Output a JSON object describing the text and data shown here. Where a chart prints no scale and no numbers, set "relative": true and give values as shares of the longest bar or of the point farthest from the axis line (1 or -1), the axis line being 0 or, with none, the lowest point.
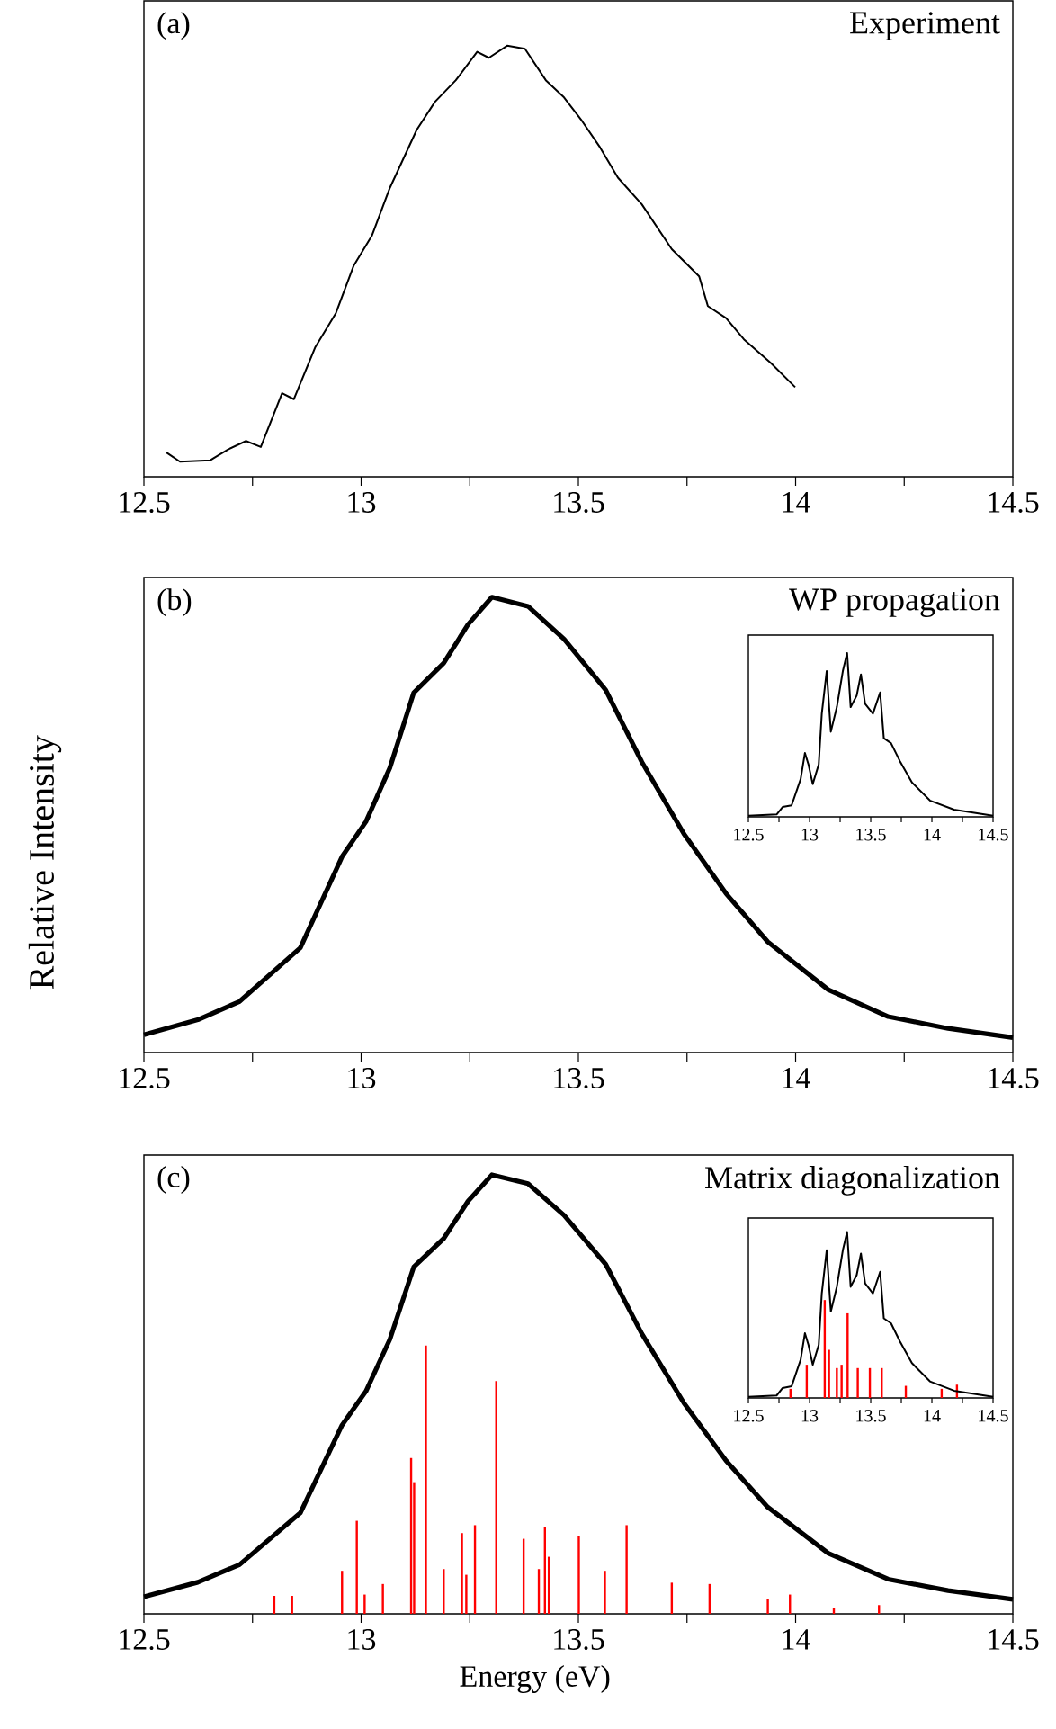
{
  "chart_data": [
    {
      "type": "line",
      "title": "Experiment",
      "annotations": [
        "(a)"
      ],
      "relative": true,
      "xlim": [
        12.5,
        14.5
      ],
      "xticks": [
        12.5,
        {
          "value": 12.75,
          "label": null
        },
        13,
        {
          "value": 13.25,
          "label": null
        },
        13.5,
        {
          "value": 13.75,
          "label": null
        },
        14,
        {
          "value": 14.25,
          "label": null
        },
        14.5
      ],
      "series": [
        {
          "color": "#000000",
          "x": [
            12.552,
            12.583,
            12.652,
            12.693,
            12.735,
            12.769,
            12.818,
            12.845,
            12.894,
            12.942,
            12.983,
            13.025,
            13.066,
            13.128,
            13.17,
            13.218,
            13.267,
            13.294,
            13.336,
            13.377,
            13.425,
            13.467,
            13.508,
            13.55,
            13.591,
            13.646,
            13.715,
            13.778,
            13.798,
            13.84,
            13.881,
            13.943,
            13.999
          ],
          "values": [
            0.056,
            0.035,
            0.038,
            0.063,
            0.083,
            0.069,
            0.194,
            0.18,
            0.3,
            0.38,
            0.49,
            0.56,
            0.67,
            0.805,
            0.87,
            0.92,
            0.986,
            0.972,
            1.0,
            0.993,
            0.92,
            0.88,
            0.826,
            0.764,
            0.694,
            0.632,
            0.528,
            0.465,
            0.396,
            0.368,
            0.319,
            0.264,
            0.208
          ]
        }
      ]
    },
    {
      "type": "line",
      "title": "WP propagation",
      "annotations": [
        "(b)"
      ],
      "ylabel": "Relative Intensity",
      "relative": true,
      "xlim": [
        12.5,
        14.5
      ],
      "xticks": [
        12.5,
        {
          "value": 12.75,
          "label": null
        },
        13,
        {
          "value": 13.25,
          "label": null
        },
        13.5,
        {
          "value": 13.75,
          "label": null
        },
        14,
        {
          "value": 14.25,
          "label": null
        },
        14.5
      ],
      "series": [
        {
          "color": "#000000",
          "x": [
            12.5,
            12.624,
            12.72,
            12.86,
            12.956,
            13.011,
            13.066,
            13.121,
            13.19,
            13.246,
            13.301,
            13.384,
            13.467,
            13.563,
            13.646,
            13.743,
            13.84,
            13.936,
            14.075,
            14.213,
            14.351,
            14.5
          ],
          "values": [
            0.039,
            0.072,
            0.112,
            0.23,
            0.43,
            0.507,
            0.625,
            0.79,
            0.855,
            0.94,
            1.0,
            0.98,
            0.908,
            0.796,
            0.638,
            0.48,
            0.349,
            0.243,
            0.138,
            0.079,
            0.053,
            0.033
          ]
        }
      ]
    },
    {
      "type": "line",
      "xlim": [
        12.5,
        14.5
      ],
      "relative": true,
      "xticks": [
        12.5,
        {
          "value": 12.75,
          "label": null
        },
        13,
        {
          "value": 13.25,
          "label": null
        },
        13.5,
        {
          "value": 13.75,
          "label": null
        },
        14,
        {
          "value": 14.25,
          "label": null
        },
        14.5
      ],
      "series": [
        {
          "color": "#000000",
          "x": [
            12.5,
            12.731,
            12.78,
            12.853,
            12.927,
            12.962,
            12.991,
            13.026,
            13.075,
            13.1,
            13.14,
            13.174,
            13.223,
            13.272,
            13.307,
            13.336,
            13.385,
            13.42,
            13.454,
            13.518,
            13.577,
            13.607,
            13.666,
            13.739,
            13.837,
            13.984,
            14.181,
            14.5
          ],
          "values": [
            0.007,
            0.015,
            0.06,
            0.07,
            0.23,
            0.39,
            0.32,
            0.2,
            0.32,
            0.63,
            0.89,
            0.52,
            0.67,
            0.89,
            1.0,
            0.67,
            0.74,
            0.87,
            0.69,
            0.63,
            0.76,
            0.48,
            0.45,
            0.34,
            0.21,
            0.1,
            0.044,
            0.007
          ]
        }
      ]
    },
    {
      "type": "line",
      "title": "Matrix diagonalization",
      "annotations": [
        "(c)"
      ],
      "xlabel": "Energy (eV)",
      "relative": true,
      "xlim": [
        12.5,
        14.5
      ],
      "xticks": [
        12.5,
        {
          "value": 12.75,
          "label": null
        },
        13,
        {
          "value": 13.25,
          "label": null
        },
        13.5,
        {
          "value": 13.75,
          "label": null
        },
        14,
        {
          "value": 14.25,
          "label": null
        },
        14.5
      ],
      "series": [
        {
          "type": "bar",
          "color": "#ff0000",
          "x": [
            12.8,
            12.841,
            12.956,
            12.99,
            13.008,
            13.05,
            13.115,
            13.122,
            13.149,
            13.19,
            13.232,
            13.242,
            13.262,
            13.311,
            13.374,
            13.409,
            13.423,
            13.432,
            13.501,
            13.561,
            13.611,
            13.715,
            13.802,
            13.936,
            13.987,
            14.088,
            14.192
          ],
          "values": [
            0.041,
            0.041,
            0.098,
            0.212,
            0.044,
            0.068,
            0.355,
            0.3,
            0.611,
            0.102,
            0.184,
            0.089,
            0.202,
            0.53,
            0.171,
            0.102,
            0.198,
            0.13,
            0.178,
            0.098,
            0.202,
            0.071,
            0.068,
            0.034,
            0.044,
            0.014,
            0.02
          ]
        },
        {
          "color": "#000000",
          "x": [
            12.5,
            12.624,
            12.72,
            12.86,
            12.956,
            13.011,
            13.066,
            13.121,
            13.19,
            13.246,
            13.301,
            13.384,
            13.467,
            13.563,
            13.646,
            13.743,
            13.84,
            13.936,
            14.075,
            14.213,
            14.351,
            14.5
          ],
          "values": [
            0.039,
            0.072,
            0.112,
            0.23,
            0.43,
            0.507,
            0.625,
            0.79,
            0.855,
            0.94,
            1.0,
            0.98,
            0.908,
            0.796,
            0.638,
            0.48,
            0.349,
            0.243,
            0.138,
            0.079,
            0.053,
            0.033
          ]
        }
      ]
    },
    {
      "type": "line",
      "xlim": [
        12.5,
        14.5
      ],
      "relative": true,
      "xticks": [
        12.5,
        {
          "value": 12.75,
          "label": null
        },
        13,
        {
          "value": 13.25,
          "label": null
        },
        13.5,
        {
          "value": 13.75,
          "label": null
        },
        14,
        {
          "value": 14.25,
          "label": null
        },
        14.5
      ],
      "series": [
        {
          "type": "bar",
          "color": "#ff0000",
          "x": [
            12.844,
            12.977,
            13.124,
            13.159,
            13.223,
            13.262,
            13.311,
            13.394,
            13.493,
            13.59,
            13.787,
            14.08,
            14.205
          ],
          "values": [
            0.055,
            0.2,
            0.59,
            0.29,
            0.18,
            0.2,
            0.51,
            0.18,
            0.18,
            0.18,
            0.073,
            0.055,
            0.08
          ]
        },
        {
          "color": "#000000",
          "x": [
            12.5,
            12.731,
            12.78,
            12.853,
            12.927,
            12.962,
            12.991,
            13.026,
            13.075,
            13.1,
            13.14,
            13.174,
            13.223,
            13.272,
            13.307,
            13.336,
            13.385,
            13.42,
            13.454,
            13.518,
            13.577,
            13.607,
            13.666,
            13.739,
            13.837,
            13.984,
            14.181,
            14.5
          ],
          "values": [
            0.007,
            0.015,
            0.06,
            0.07,
            0.23,
            0.39,
            0.32,
            0.2,
            0.32,
            0.63,
            0.89,
            0.52,
            0.67,
            0.89,
            1.0,
            0.67,
            0.74,
            0.87,
            0.69,
            0.63,
            0.76,
            0.48,
            0.45,
            0.34,
            0.21,
            0.1,
            0.044,
            0.007
          ]
        }
      ]
    }
  ]
}
